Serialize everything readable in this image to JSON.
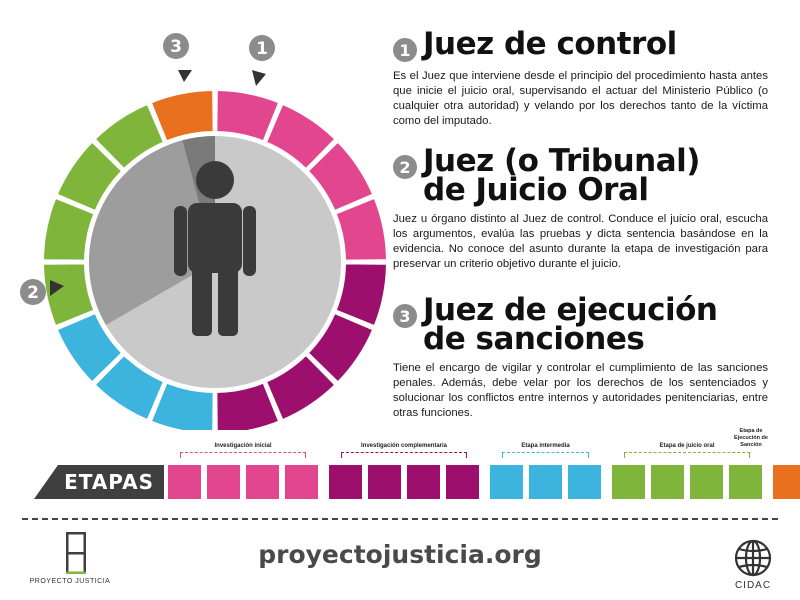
{
  "colors": {
    "pink": "#e2468e",
    "purple": "#9c0f6d",
    "cyan": "#3cb4dd",
    "green": "#7fb53a",
    "orange": "#e8701f",
    "gray_dark": "#3f3f3f"
  },
  "markers": [
    {
      "label": "1"
    },
    {
      "label": "2"
    },
    {
      "label": "3"
    }
  ],
  "sections": [
    {
      "number": "1",
      "title": "Juez de control",
      "body": "Es el Juez que interviene desde el principio del procedimiento hasta antes que inicie el juicio oral, supervisando el actuar del Ministerio Público (o cualquier otra autoridad) y velando por los derechos tanto de la víctima como del imputado."
    },
    {
      "number": "2",
      "title_line1": "Juez (o Tribunal)",
      "title_line2": "de Juicio Oral",
      "body": "Juez u órgano distinto al Juez de control. Conduce el juicio oral, escucha los argumentos, evalúa las pruebas y dicta sentencia basándose en la evidencia. No conoce del asunto durante la etapa de investigación para preservar un criterio objetivo durante el juicio."
    },
    {
      "number": "3",
      "title_line1": "Juez de ejecución",
      "title_line2": "de sanciones",
      "body": "Tiene el encargo de vigilar y controlar el cumplimiento de las sanciones penales. Además,  debe velar por los derechos de los sentenciados y solucionar los conflictos entre internos y autoridades penitenciarias, entre otras funciones."
    }
  ],
  "stages": {
    "label": "ETAPAS",
    "groups": [
      {
        "name": "Investigación inicial",
        "color": "#e2468e",
        "count": 4
      },
      {
        "name": "Investigación complementaria",
        "color": "#9c0f6d",
        "count": 4
      },
      {
        "name": "Etapa intermedia",
        "color": "#3cb4dd",
        "count": 3
      },
      {
        "name": "Etapa de juicio oral",
        "color": "#7fb53a",
        "count": 4
      },
      {
        "name": "Etapa de Ejecución de Sanción",
        "color": "#e8701f",
        "count": 1
      }
    ]
  },
  "footer": {
    "website": "proyectojusticia.org",
    "logo_left_text": "PROYECTO JUSTICIA",
    "logo_right_text": "CIDAC"
  }
}
